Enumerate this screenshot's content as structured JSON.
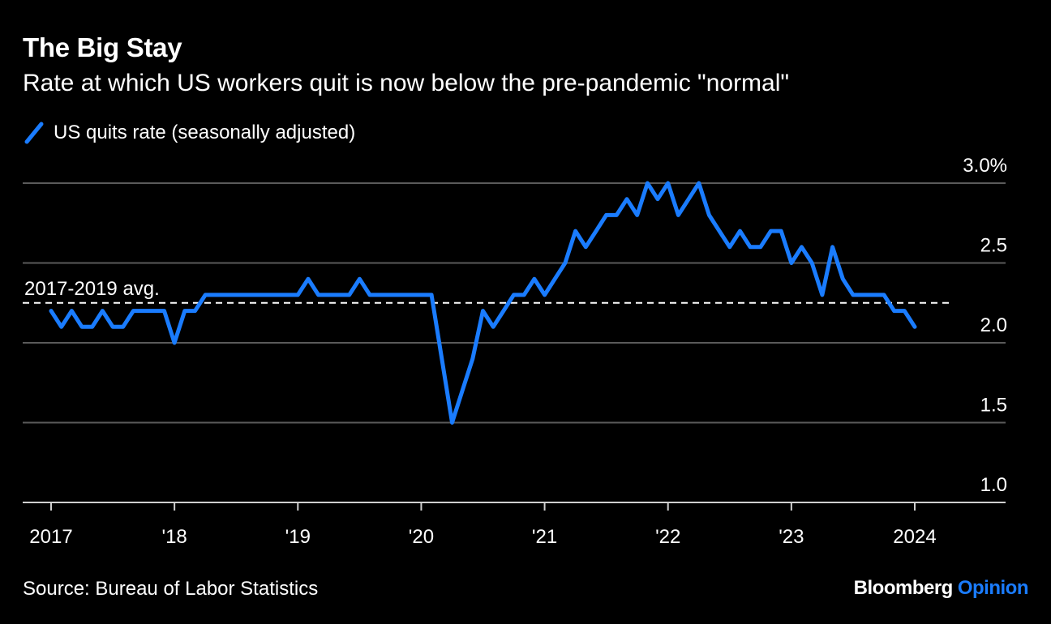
{
  "title": "The Big Stay",
  "subtitle": "Rate at which US workers quit is now below the pre-pandemic \"normal\"",
  "legend_label": "US quits rate (seasonally adjusted)",
  "source": "Source: Bureau of Labor Statistics",
  "brand": {
    "name": "Bloomberg",
    "suffix": "Opinion"
  },
  "colors": {
    "series": "#1a7cff",
    "background": "#000000",
    "grid": "#5a5a5a",
    "text": "#ffffff"
  },
  "chart_data": {
    "type": "line",
    "title": "The Big Stay",
    "subtitle": "Rate at which US workers quit is now below the pre-pandemic \"normal\"",
    "xlabel": "",
    "ylabel": "",
    "ylim": [
      1.0,
      3.0
    ],
    "yticks": [
      {
        "value": 3.0,
        "label": "3.0%"
      },
      {
        "value": 2.5,
        "label": "2.5"
      },
      {
        "value": 2.0,
        "label": "2.0"
      },
      {
        "value": 1.5,
        "label": "1.5"
      },
      {
        "value": 1.0,
        "label": "1.0"
      }
    ],
    "xticks": [
      {
        "value": 2017,
        "label": "2017"
      },
      {
        "value": 2018,
        "label": "'18"
      },
      {
        "value": 2019,
        "label": "'19"
      },
      {
        "value": 2020,
        "label": "'20"
      },
      {
        "value": 2021,
        "label": "'21"
      },
      {
        "value": 2022,
        "label": "'22"
      },
      {
        "value": 2023,
        "label": "'23"
      },
      {
        "value": 2024,
        "label": "2024"
      }
    ],
    "grid": true,
    "legend_position": "top-left",
    "reference_line": {
      "value": 2.25,
      "label": "2017-2019 avg."
    },
    "series": [
      {
        "name": "US quits rate (seasonally adjusted)",
        "color": "#1a7cff",
        "x": [
          "2017-01",
          "2017-02",
          "2017-03",
          "2017-04",
          "2017-05",
          "2017-06",
          "2017-07",
          "2017-08",
          "2017-09",
          "2017-10",
          "2017-11",
          "2017-12",
          "2018-01",
          "2018-02",
          "2018-03",
          "2018-04",
          "2018-05",
          "2018-06",
          "2018-07",
          "2018-08",
          "2018-09",
          "2018-10",
          "2018-11",
          "2018-12",
          "2019-01",
          "2019-02",
          "2019-03",
          "2019-04",
          "2019-05",
          "2019-06",
          "2019-07",
          "2019-08",
          "2019-09",
          "2019-10",
          "2019-11",
          "2019-12",
          "2020-01",
          "2020-02",
          "2020-03",
          "2020-04",
          "2020-05",
          "2020-06",
          "2020-07",
          "2020-08",
          "2020-09",
          "2020-10",
          "2020-11",
          "2020-12",
          "2021-01",
          "2021-02",
          "2021-03",
          "2021-04",
          "2021-05",
          "2021-06",
          "2021-07",
          "2021-08",
          "2021-09",
          "2021-10",
          "2021-11",
          "2021-12",
          "2022-01",
          "2022-02",
          "2022-03",
          "2022-04",
          "2022-05",
          "2022-06",
          "2022-07",
          "2022-08",
          "2022-09",
          "2022-10",
          "2022-11",
          "2022-12",
          "2023-01",
          "2023-02",
          "2023-03",
          "2023-04",
          "2023-05",
          "2023-06",
          "2023-07",
          "2023-08",
          "2023-09",
          "2023-10",
          "2023-11",
          "2023-12",
          "2024-01"
        ],
        "values": [
          2.2,
          2.1,
          2.2,
          2.1,
          2.1,
          2.2,
          2.1,
          2.1,
          2.2,
          2.2,
          2.2,
          2.2,
          2.0,
          2.2,
          2.2,
          2.3,
          2.3,
          2.3,
          2.3,
          2.3,
          2.3,
          2.3,
          2.3,
          2.3,
          2.3,
          2.4,
          2.3,
          2.3,
          2.3,
          2.3,
          2.4,
          2.3,
          2.3,
          2.3,
          2.3,
          2.3,
          2.3,
          2.3,
          1.9,
          1.5,
          1.7,
          1.9,
          2.2,
          2.1,
          2.2,
          2.3,
          2.3,
          2.4,
          2.3,
          2.4,
          2.5,
          2.7,
          2.6,
          2.7,
          2.8,
          2.8,
          2.9,
          2.8,
          3.0,
          2.9,
          3.0,
          2.8,
          2.9,
          3.0,
          2.8,
          2.7,
          2.6,
          2.7,
          2.6,
          2.6,
          2.7,
          2.7,
          2.5,
          2.6,
          2.5,
          2.3,
          2.6,
          2.4,
          2.3,
          2.3,
          2.3,
          2.3,
          2.2,
          2.2,
          2.1
        ]
      }
    ]
  }
}
